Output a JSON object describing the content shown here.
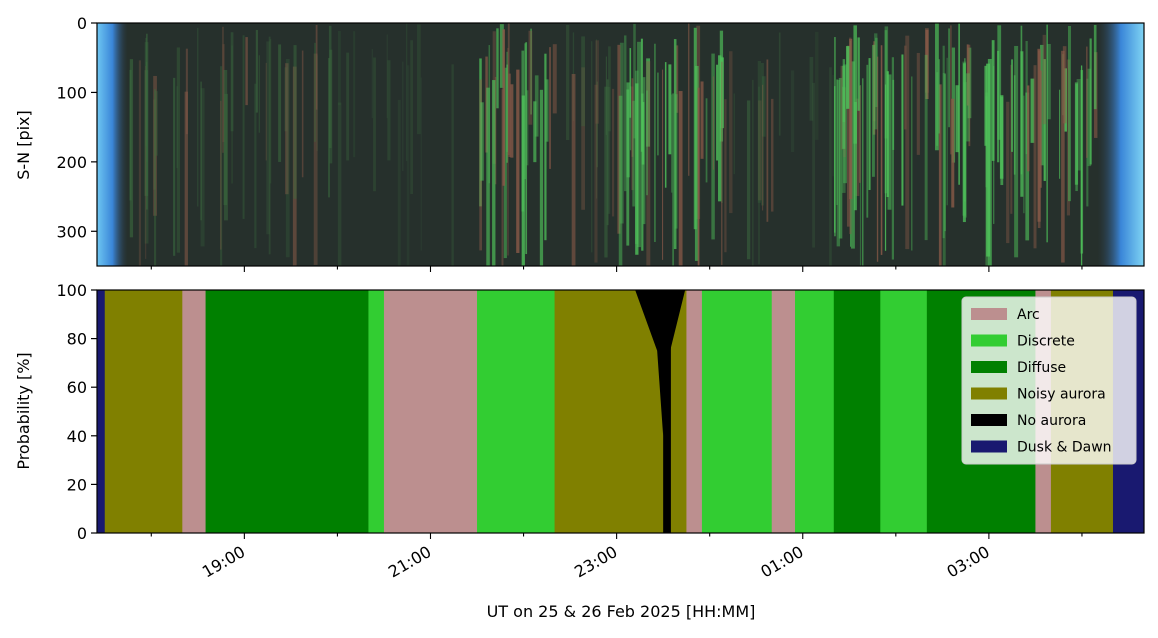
{
  "chart_data": [
    {
      "type": "heatmap",
      "panel": "keogram",
      "ylabel": "S-N [pix]",
      "ylim": [
        350,
        0
      ],
      "yticks": [
        0,
        100,
        200,
        300
      ],
      "xlim": [
        "17:25",
        "04:40"
      ],
      "description_colors": {
        "twilight": "#5fb8ee",
        "night_bg": "#26302c",
        "aurora_green": "#4fc25a",
        "aurora_dim": "#3b6b3f",
        "aurora_red": "#8a5a48"
      },
      "segments": [
        {
          "start": "17:25",
          "end": "17:45",
          "style": "twilight"
        },
        {
          "start": "17:45",
          "end": "20:00",
          "style": "dim"
        },
        {
          "start": "20:00",
          "end": "21:30",
          "style": "dark"
        },
        {
          "start": "21:30",
          "end": "22:20",
          "style": "bright"
        },
        {
          "start": "22:20",
          "end": "23:00",
          "style": "dim"
        },
        {
          "start": "23:00",
          "end": "00:10",
          "style": "bright"
        },
        {
          "start": "00:10",
          "end": "00:40",
          "style": "dim"
        },
        {
          "start": "00:40",
          "end": "01:20",
          "style": "dark"
        },
        {
          "start": "01:20",
          "end": "04:10",
          "style": "bright"
        },
        {
          "start": "04:10",
          "end": "04:40",
          "style": "twilight"
        }
      ]
    },
    {
      "type": "area",
      "panel": "probability",
      "ylabel": "Probability [%]",
      "xlabel": "UT on 25 & 26 Feb 2025 [HH:MM]",
      "ylim": [
        0,
        100
      ],
      "yticks": [
        0,
        20,
        40,
        60,
        80,
        100
      ],
      "xlim": [
        "17:25",
        "04:40"
      ],
      "xticks": [
        "19:00",
        "21:00",
        "23:00",
        "01:00",
        "03:00"
      ],
      "xtick_rotation": 30,
      "legend_position": "top-right",
      "classes": [
        {
          "name": "Arc",
          "color": "#bc8f8f"
        },
        {
          "name": "Discrete",
          "color": "#32cd32"
        },
        {
          "name": "Diffuse",
          "color": "#008000"
        },
        {
          "name": "Noisy aurora",
          "color": "#808000"
        },
        {
          "name": "No aurora",
          "color": "#000000"
        },
        {
          "name": "Dusk & Dawn",
          "color": "#191970"
        }
      ],
      "dominant_intervals": [
        {
          "start": "17:25",
          "end": "17:30",
          "class": "Dusk & Dawn"
        },
        {
          "start": "17:30",
          "end": "18:20",
          "class": "Noisy aurora"
        },
        {
          "start": "18:20",
          "end": "18:35",
          "class": "Arc"
        },
        {
          "start": "18:35",
          "end": "20:20",
          "class": "Diffuse"
        },
        {
          "start": "20:20",
          "end": "20:30",
          "class": "Discrete"
        },
        {
          "start": "20:30",
          "end": "21:30",
          "class": "Arc"
        },
        {
          "start": "21:30",
          "end": "22:20",
          "class": "Discrete"
        },
        {
          "start": "22:20",
          "end": "22:55",
          "class": "Noisy aurora"
        },
        {
          "start": "22:55",
          "end": "23:30",
          "class": "Noisy aurora"
        },
        {
          "start": "23:30",
          "end": "23:35",
          "class": "No aurora"
        },
        {
          "start": "23:35",
          "end": "23:45",
          "class": "Noisy aurora"
        },
        {
          "start": "23:45",
          "end": "23:55",
          "class": "Arc"
        },
        {
          "start": "23:55",
          "end": "00:40",
          "class": "Discrete"
        },
        {
          "start": "00:40",
          "end": "00:55",
          "class": "Arc"
        },
        {
          "start": "00:55",
          "end": "01:20",
          "class": "Discrete"
        },
        {
          "start": "01:20",
          "end": "01:50",
          "class": "Diffuse"
        },
        {
          "start": "01:50",
          "end": "02:20",
          "class": "Discrete"
        },
        {
          "start": "02:20",
          "end": "03:30",
          "class": "Diffuse"
        },
        {
          "start": "03:30",
          "end": "03:40",
          "class": "Arc"
        },
        {
          "start": "03:40",
          "end": "04:20",
          "class": "Noisy aurora"
        },
        {
          "start": "04:20",
          "end": "04:40",
          "class": "Dusk & Dawn"
        }
      ],
      "no_aurora_peak": {
        "time": "23:30",
        "value": 100,
        "base": 40
      }
    }
  ]
}
